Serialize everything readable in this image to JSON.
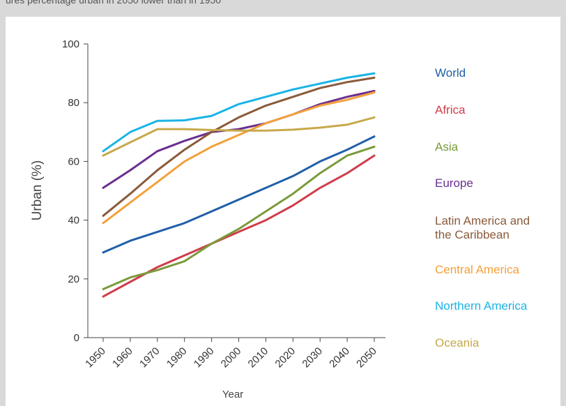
{
  "header": {
    "caption": "ures percentage urban in 2050 lower than in 1950"
  },
  "chart_data": {
    "type": "line",
    "title": "",
    "xlabel": "Year",
    "ylabel": "Urban (%)",
    "ylim": [
      0,
      100
    ],
    "yticks": [
      0,
      20,
      40,
      60,
      80,
      100
    ],
    "x": [
      1950,
      1960,
      1970,
      1980,
      1990,
      2000,
      2010,
      2020,
      2030,
      2040,
      2050
    ],
    "grid": false,
    "legend_position": "right",
    "series": [
      {
        "name": "World",
        "color": "#1f5fa8",
        "values": [
          29,
          33,
          36,
          39,
          43,
          47,
          51,
          55,
          60,
          64,
          68.5
        ]
      },
      {
        "name": "Africa",
        "color": "#d03c4a",
        "values": [
          14,
          19,
          24,
          28,
          32,
          36,
          40,
          45,
          51,
          56,
          62
        ]
      },
      {
        "name": "Asia",
        "color": "#7a9a3a",
        "values": [
          16.5,
          20.5,
          23,
          26,
          32,
          37,
          43,
          49,
          56,
          62,
          65
        ]
      },
      {
        "name": "Europe",
        "color": "#6a2e8f",
        "values": [
          51,
          57,
          63.5,
          67,
          70,
          71,
          73,
          76,
          79.5,
          82,
          84
        ]
      },
      {
        "name": "Latin America and\nthe Caribbean",
        "color": "#8a5a3a",
        "values": [
          41.5,
          49,
          57,
          64,
          70,
          75,
          79,
          82,
          85,
          87,
          88.5
        ]
      },
      {
        "name": "Central America",
        "color": "#f4a03a",
        "values": [
          39,
          46,
          53,
          60,
          65,
          69,
          73,
          76,
          79,
          81,
          83.5
        ]
      },
      {
        "name": "Northern America",
        "color": "#19b3e6",
        "values": [
          63.5,
          70,
          73.8,
          74,
          75.5,
          79.5,
          82,
          84.5,
          86.5,
          88.5,
          90
        ]
      },
      {
        "name": "Oceania",
        "color": "#c7a94a",
        "values": [
          62,
          66.5,
          71,
          71,
          70.7,
          70.5,
          70.5,
          70.8,
          71.5,
          72.5,
          75
        ]
      }
    ]
  }
}
